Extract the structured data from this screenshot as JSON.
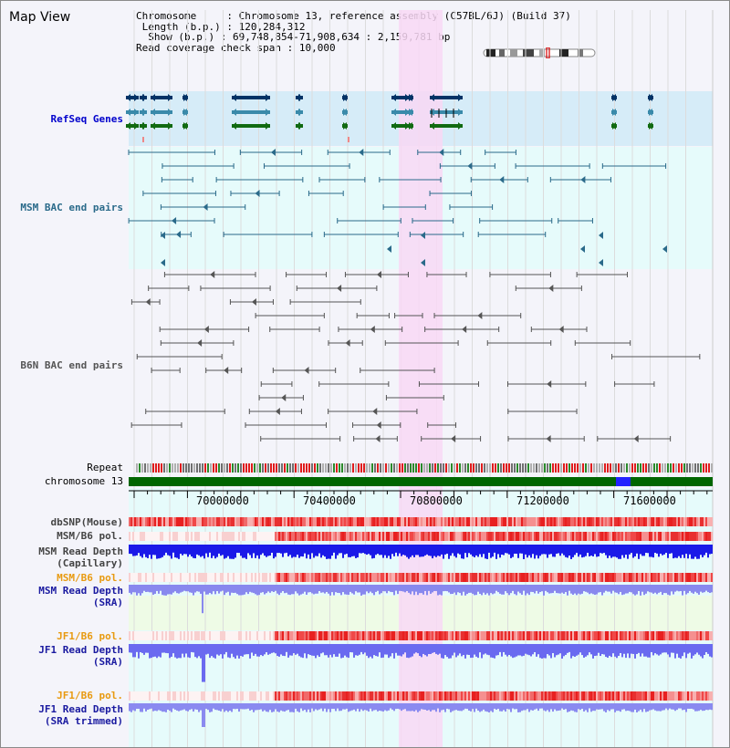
{
  "view_title": "Map View",
  "info": {
    "chromosome_label": "Chromosome",
    "chromosome_value": "Chromosome 13, reference assembly (C57BL/6J) (Build 37)",
    "length_label": "Length (b.p.)",
    "length_value": "120,284,312",
    "show_label": "Show (b.p.)",
    "show_value": "69,748,854-71,908,634 : 2,159,781 bp",
    "span_label": "Read coverage check span",
    "span_value": "10,000"
  },
  "tracks": {
    "refseq": "RefSeq Genes",
    "msm_bac": "MSM BAC end pairs",
    "b6n_bac": "B6N BAC end pairs",
    "repeat": "Repeat",
    "chromosome": "chromosome 13",
    "dbsnp": "dbSNP(Mouse)",
    "msm_b6_pol_1": "MSM/B6 pol.",
    "msm_depth_cap_1": "MSM Read Depth",
    "msm_depth_cap_2": "(Capillary)",
    "msm_b6_pol_2": "MSM/B6 pol.",
    "msm_depth_sra_1": "MSM Read Depth",
    "msm_depth_sra_2": "(SRA)",
    "jf1_b6_pol_1": "JF1/B6 pol.",
    "jf1_depth_sra_1": "JF1 Read Depth",
    "jf1_depth_sra_2": "(SRA)",
    "jf1_b6_pol_2": "JF1/B6 pol.",
    "jf1_depth_trim_1": "JF1 Read Depth",
    "jf1_depth_trim_2": "(SRA trimmed)"
  },
  "axis_ticks": [
    "70000000",
    "70400000",
    "70800000",
    "71200000",
    "71600000"
  ],
  "colors": {
    "refseq_bg": "#d6ecf8",
    "msm_bg": "#e6fbfb",
    "highlight": "#f8d8f4",
    "gene_dark": "#003366",
    "gene_mid": "#3a8aaa",
    "gene_green": "#116a11",
    "msm_line": "#2a6a8a",
    "b6n_line": "#555555",
    "chrom_green": "#006600",
    "depth_blue": "#1a1ae8"
  }
}
